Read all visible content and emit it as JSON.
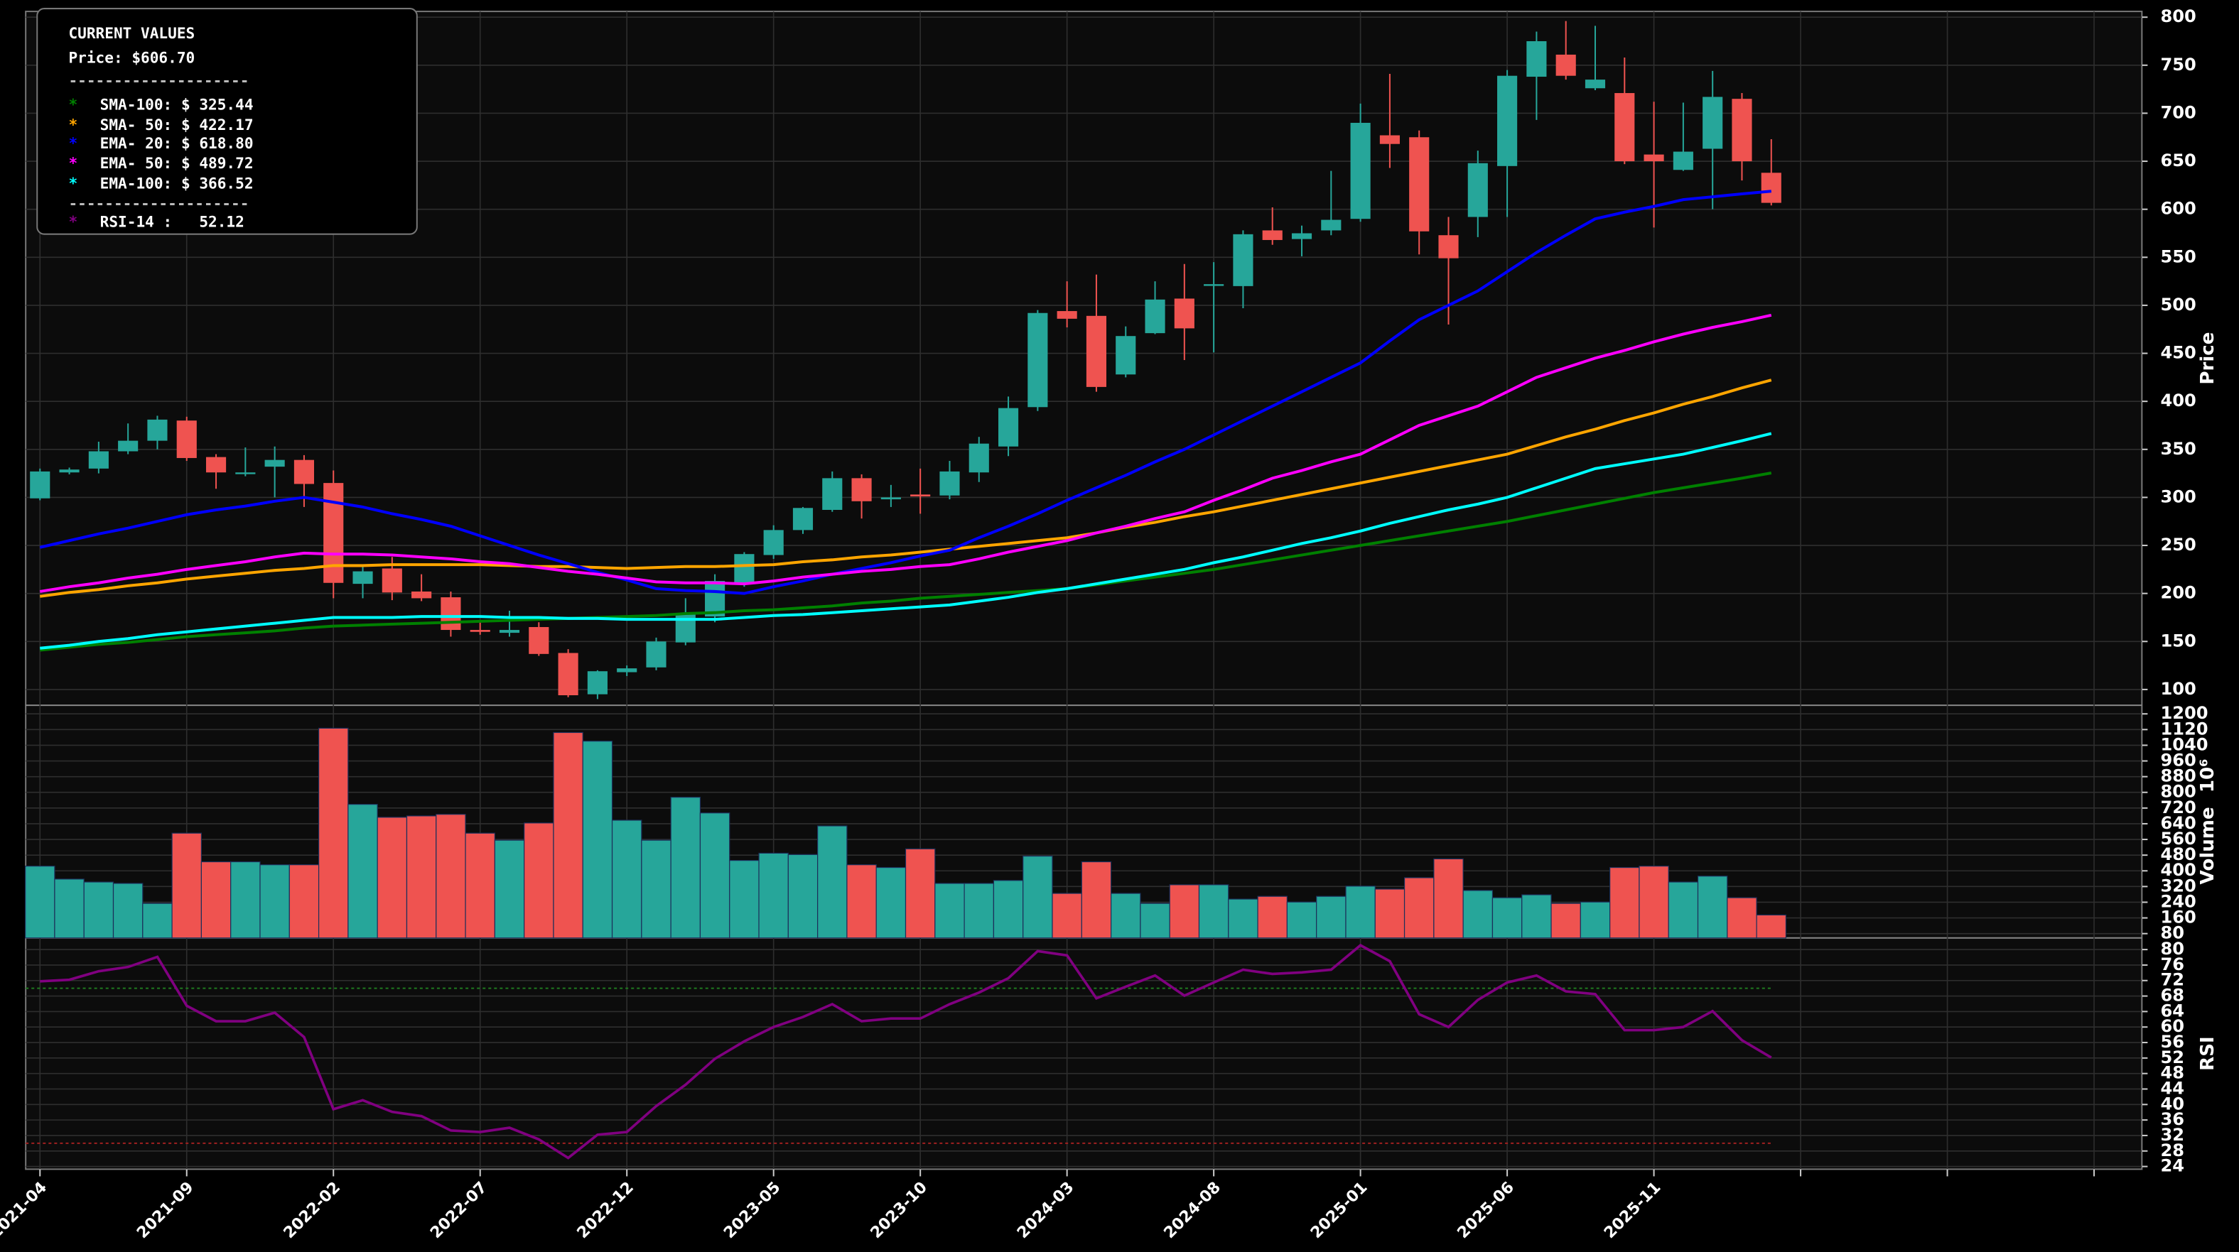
{
  "chart_data": [
    {
      "type": "candlestick",
      "ylabel": "Price",
      "categories": [
        "2021-04",
        null,
        null,
        null,
        null,
        "2021-09",
        null,
        null,
        null,
        null,
        "2022-02",
        null,
        null,
        null,
        null,
        "2022-07",
        null,
        null,
        null,
        null,
        "2022-12",
        null,
        null,
        null,
        null,
        "2023-05",
        null,
        null,
        null,
        null,
        "2023-10",
        null,
        null,
        null,
        null,
        "2024-03",
        null,
        null,
        null,
        null,
        "2024-08",
        null,
        null,
        null,
        null,
        "2025-01",
        null,
        null,
        null,
        null,
        "2025-06",
        null,
        null,
        null,
        null,
        "2025-11",
        null,
        null,
        null,
        null
      ],
      "open": [
        299,
        326,
        330,
        348,
        359,
        380,
        342,
        325,
        332,
        339,
        315,
        210,
        226,
        202,
        196,
        162,
        159,
        165,
        138,
        95,
        118,
        123,
        149,
        176,
        211,
        240,
        266,
        287,
        320,
        298,
        303,
        302,
        326,
        353,
        394,
        494,
        489,
        428,
        471,
        507,
        521,
        520,
        578,
        569,
        578,
        590,
        677,
        675,
        573,
        592,
        645,
        738,
        761,
        726,
        721,
        657,
        641,
        663,
        715,
        638
      ],
      "high": [
        330,
        331,
        358,
        377,
        385,
        384,
        345,
        352,
        353,
        344,
        328,
        230,
        238,
        220,
        202,
        170,
        182,
        170,
        142,
        120,
        125,
        154,
        195,
        220,
        243,
        271,
        290,
        327,
        324,
        313,
        330,
        338,
        363,
        405,
        495,
        525,
        532,
        478,
        525,
        543,
        545,
        578,
        602,
        583,
        640,
        710,
        741,
        682,
        592,
        661,
        745,
        785,
        796,
        791,
        758,
        712,
        711,
        744,
        721,
        673
      ],
      "low": [
        297,
        324,
        325,
        345,
        350,
        338,
        309,
        322,
        300,
        290,
        195,
        195,
        193,
        192,
        155,
        157,
        155,
        135,
        92,
        90,
        114,
        120,
        146,
        170,
        207,
        236,
        262,
        285,
        278,
        290,
        283,
        298,
        316,
        343,
        390,
        477,
        410,
        425,
        470,
        443,
        451,
        497,
        563,
        551,
        573,
        587,
        643,
        553,
        480,
        571,
        592,
        693,
        735,
        724,
        647,
        581,
        640,
        600,
        630,
        604
      ],
      "close": [
        327,
        329,
        348,
        359,
        381,
        341,
        326,
        326,
        339,
        314,
        211,
        223,
        201,
        195,
        162,
        160,
        162,
        137,
        94,
        119,
        122,
        150,
        178,
        213,
        241,
        266,
        289,
        320,
        296,
        300,
        301,
        327,
        356,
        393,
        492,
        486,
        415,
        468,
        506,
        476,
        522,
        574,
        568,
        575,
        589,
        690,
        668,
        577,
        549,
        648,
        739,
        775,
        739,
        735,
        650,
        650,
        660,
        717,
        650,
        606.7
      ],
      "up_color": "#26a69a",
      "down_color": "#ef5350",
      "series": [
        {
          "color": "#008000",
          "values": [
            141,
            144,
            147,
            149,
            152,
            155,
            157,
            159,
            161,
            164,
            166,
            167,
            168,
            169,
            170,
            171,
            172,
            173,
            174,
            175,
            176,
            177,
            179,
            180,
            182,
            183,
            185,
            187,
            190,
            192,
            195,
            197,
            199,
            201,
            203,
            205,
            209,
            213,
            217,
            221,
            225,
            230,
            235,
            240,
            245,
            250,
            255,
            260,
            265,
            270,
            275,
            281,
            287,
            293,
            299,
            305,
            310,
            315,
            320,
            325.44
          ]
        },
        {
          "color": "#ffa500",
          "values": [
            197,
            201,
            204,
            208,
            211,
            215,
            218,
            221,
            224,
            226,
            229,
            229,
            230,
            230,
            230,
            230,
            229,
            228,
            228,
            227,
            226,
            227,
            228,
            228,
            229,
            230,
            233,
            235,
            238,
            240,
            243,
            246,
            249,
            252,
            255,
            258,
            263,
            269,
            274,
            280,
            285,
            291,
            297,
            303,
            309,
            315,
            321,
            327,
            333,
            339,
            345,
            354,
            363,
            371,
            380,
            388,
            397,
            405,
            414,
            422.17
          ]
        },
        {
          "color": "#0000ff",
          "values": [
            248,
            255,
            262,
            268,
            275,
            282,
            287,
            291,
            296,
            300,
            295,
            290,
            283,
            277,
            270,
            260,
            250,
            240,
            231,
            222,
            214,
            205,
            203,
            202,
            200,
            207,
            213,
            220,
            226,
            232,
            239,
            245,
            258,
            270,
            283,
            297,
            310,
            323,
            337,
            350,
            365,
            380,
            395,
            410,
            425,
            440,
            463,
            485,
            500,
            515,
            535,
            555,
            573,
            590,
            597,
            603,
            610,
            613,
            616,
            618.8
          ]
        },
        {
          "color": "#ff00ff",
          "values": [
            202,
            207,
            211,
            216,
            220,
            225,
            229,
            233,
            238,
            242,
            241,
            241,
            240,
            238,
            236,
            233,
            231,
            227,
            223,
            220,
            216,
            212,
            211,
            211,
            210,
            213,
            217,
            220,
            223,
            225,
            228,
            230,
            236,
            243,
            249,
            255,
            263,
            270,
            278,
            285,
            297,
            308,
            320,
            328,
            337,
            345,
            360,
            375,
            385,
            395,
            410,
            425,
            435,
            445,
            453,
            462,
            470,
            477,
            483,
            489.72
          ]
        },
        {
          "color": "#00ffff",
          "values": [
            143,
            146,
            150,
            153,
            157,
            160,
            163,
            166,
            169,
            172,
            175,
            175,
            175,
            176,
            176,
            176,
            175,
            175,
            174,
            174,
            173,
            173,
            173,
            173,
            175,
            177,
            178,
            180,
            182,
            184,
            186,
            188,
            192,
            196,
            201,
            205,
            210,
            215,
            220,
            225,
            232,
            238,
            245,
            252,
            258,
            265,
            273,
            280,
            287,
            293,
            300,
            310,
            320,
            330,
            335,
            340,
            345,
            352,
            359,
            366.52
          ]
        }
      ],
      "ylim": [
        83.6,
        806
      ],
      "yticks": [
        100,
        150,
        200,
        250,
        300,
        350,
        400,
        450,
        500,
        550,
        600,
        650,
        700,
        750,
        800
      ],
      "grid": true,
      "legend": {
        "title": "CURRENT VALUES",
        "price": "Price: $606.70",
        "separator": "--------------------",
        "marker": "*",
        "items": [
          "SMA-100: $ 325.44",
          "SMA- 50: $ 422.17",
          "EMA- 20: $ 618.80",
          "EMA- 50: $ 489.72",
          "EMA-100: $ 366.52"
        ],
        "rsi": "RSI-14 :   52.12"
      }
    },
    {
      "type": "bar",
      "ylabel": "Volume",
      "offset_label": "10⁶",
      "values": [
        424,
        358,
        343,
        336,
        234,
        592,
        446,
        446,
        431,
        431,
        1127,
        739,
        673,
        680,
        688,
        592,
        556,
        644,
        1105,
        1061,
        658,
        556,
        775,
        695,
        453,
        490,
        483,
        629,
        431,
        417,
        512,
        336,
        336,
        351,
        475,
        285,
        446,
        285,
        234,
        329,
        329,
        256,
        270,
        241,
        270,
        322,
        307,
        365,
        461,
        300,
        263,
        278,
        234,
        241,
        417,
        424,
        343,
        373,
        263,
        175
      ],
      "up_color": "#26a69a",
      "down_color": "#ef5350",
      "ylim": [
        58,
        1244
      ],
      "yticks": [
        80,
        160,
        240,
        320,
        400,
        480,
        560,
        640,
        720,
        800,
        880,
        960,
        1040,
        1120,
        1200
      ],
      "grid": true
    },
    {
      "type": "line",
      "ylabel": "RSI",
      "color": "#800080",
      "values": [
        71.8,
        72.2,
        74.4,
        75.5,
        78.1,
        65.5,
        61.5,
        61.5,
        63.7,
        57.4,
        38.8,
        41.1,
        38.1,
        37.0,
        33.3,
        32.9,
        34.0,
        31.0,
        26.2,
        32.2,
        32.9,
        39.6,
        45.1,
        51.8,
        56.3,
        60.0,
        62.6,
        65.9,
        61.5,
        62.2,
        62.2,
        65.9,
        68.9,
        72.6,
        79.6,
        78.5,
        67.4,
        70.4,
        73.3,
        68.1,
        71.5,
        74.8,
        73.7,
        74.1,
        74.8,
        81.1,
        77.0,
        63.3,
        60.0,
        67.0,
        71.5,
        73.3,
        69.2,
        68.5,
        59.2,
        59.2,
        60.0,
        64.1,
        56.6,
        52.12
      ],
      "reference_lines": [
        {
          "value": 70,
          "color": "#1f7a1f"
        },
        {
          "value": 30,
          "color": "#a02020"
        }
      ],
      "ylim": [
        23.3,
        83
      ],
      "yticks": [
        24,
        28,
        32,
        36,
        40,
        44,
        48,
        52,
        56,
        60,
        64,
        68,
        72,
        76,
        80
      ],
      "grid": true
    }
  ]
}
